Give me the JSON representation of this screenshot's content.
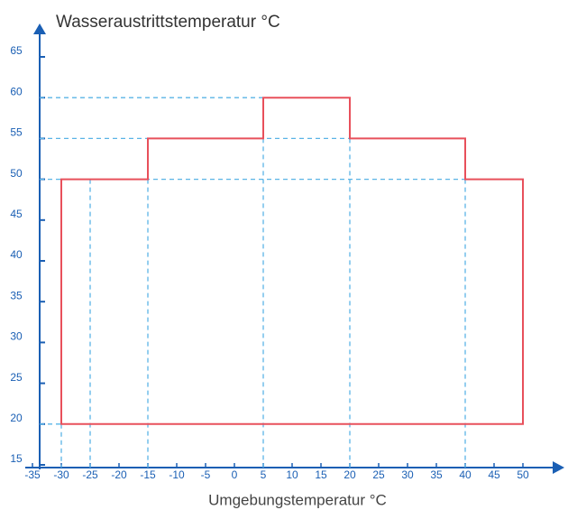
{
  "chart_data": {
    "type": "line",
    "title": "Wasseraustrittstemperatur °C",
    "x_label": "Umgebungstemperatur °C",
    "series": [
      {
        "color": "#e8505b",
        "x": [
          -30,
          -30,
          -15,
          -15,
          5,
          5,
          20,
          20,
          40,
          40,
          50,
          50
        ],
        "values": [
          20,
          50,
          50,
          55,
          55,
          60,
          60,
          55,
          55,
          50,
          50,
          20
        ]
      }
    ],
    "xlim": [
      -35,
      50
    ],
    "ylim": [
      15,
      65
    ],
    "xticks": [
      -35,
      -30,
      -25,
      -20,
      -15,
      -10,
      -5,
      0,
      5,
      10,
      15,
      20,
      25,
      30,
      35,
      40,
      45,
      50
    ],
    "yticks": [
      15,
      20,
      25,
      30,
      35,
      40,
      45,
      50,
      55,
      60,
      65
    ],
    "guide_color": "#5ab4e6",
    "h_guides": [
      {
        "y": 60,
        "to_x": 5
      },
      {
        "y": 55,
        "to_x": 20
      },
      {
        "y": 50,
        "to_x": 40
      },
      {
        "y": 20,
        "to_x": -30
      }
    ],
    "v_guides": [
      {
        "x": -30,
        "from_y": 20
      },
      {
        "x": -25,
        "from_y": 50
      },
      {
        "x": -15,
        "from_y": 50
      },
      {
        "x": 5,
        "from_y": 55
      },
      {
        "x": 20,
        "from_y": 55
      },
      {
        "x": 40,
        "from_y": 50
      }
    ]
  }
}
